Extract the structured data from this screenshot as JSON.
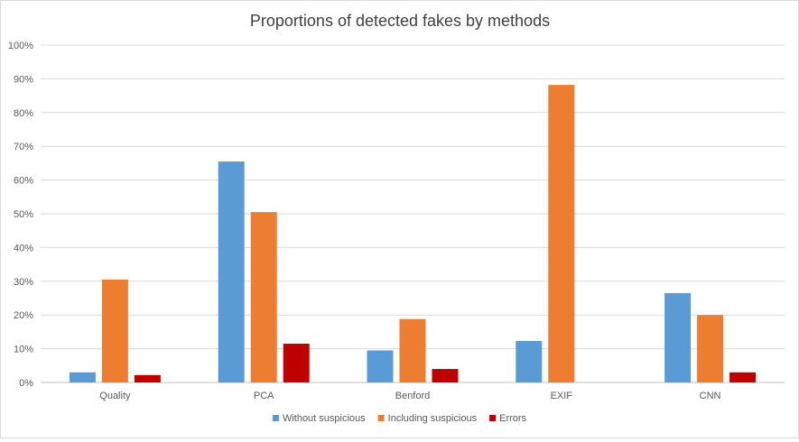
{
  "chart_data": {
    "type": "bar",
    "title": "Proportions of detected fakes by methods",
    "xlabel": "",
    "ylabel": "",
    "categories": [
      "Quality",
      "PCA",
      "Benford",
      "EXIF",
      "CNN"
    ],
    "series": [
      {
        "name": "Without suspicious",
        "color": "#5B9BD5",
        "values": [
          3,
          65.5,
          9.5,
          12.3,
          26.5
        ]
      },
      {
        "name": "Including suspicious",
        "color": "#ED7D31",
        "values": [
          30.5,
          50.5,
          18.8,
          88.2,
          20
        ]
      },
      {
        "name": "Errors",
        "color": "#C00000",
        "values": [
          2.2,
          11.5,
          4,
          0,
          3
        ]
      }
    ],
    "ylim": [
      0,
      100
    ],
    "yticks": [
      "0%",
      "10%",
      "20%",
      "30%",
      "40%",
      "50%",
      "60%",
      "70%",
      "80%",
      "90%",
      "100%"
    ],
    "grid": true,
    "legend_position": "bottom"
  }
}
